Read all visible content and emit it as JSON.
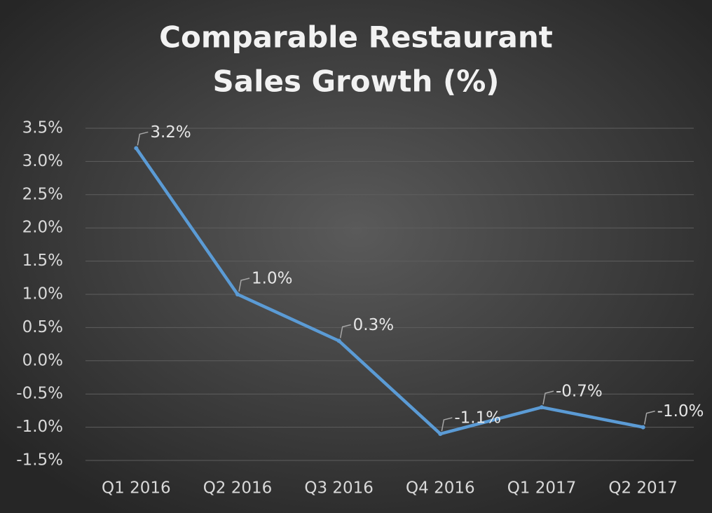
{
  "chart_data": {
    "type": "line",
    "title": [
      "Comparable Restaurant",
      "Sales Growth (%)"
    ],
    "categories": [
      "Q1 2016",
      "Q2 2016",
      "Q3 2016",
      "Q4 2016",
      "Q1 2017",
      "Q2 2017"
    ],
    "series": [
      {
        "name": "Comparable Restaurant Sales Growth",
        "color": "#5b9bd5",
        "values": [
          3.2,
          1.0,
          0.3,
          -1.1,
          -0.7,
          -1.0
        ],
        "value_labels": [
          "3.2%",
          "1.0%",
          "0.3%",
          "-1.1%",
          "-0.7%",
          "-1.0%"
        ]
      }
    ],
    "ylim": [
      -1.5,
      3.5
    ],
    "yticks": [
      {
        "value": 3.5,
        "label": "3.5%"
      },
      {
        "value": 3.0,
        "label": "3.0%"
      },
      {
        "value": 2.5,
        "label": "2.5%"
      },
      {
        "value": 2.0,
        "label": "2.0%"
      },
      {
        "value": 1.5,
        "label": "1.5%"
      },
      {
        "value": 1.0,
        "label": "1.0%"
      },
      {
        "value": 0.5,
        "label": "0.5%"
      },
      {
        "value": 0.0,
        "label": "0.0%"
      },
      {
        "value": -0.5,
        "label": "-0.5%"
      },
      {
        "value": -1.0,
        "label": "-1.0%"
      },
      {
        "value": -1.5,
        "label": "-1.5%"
      }
    ],
    "grid": true
  }
}
